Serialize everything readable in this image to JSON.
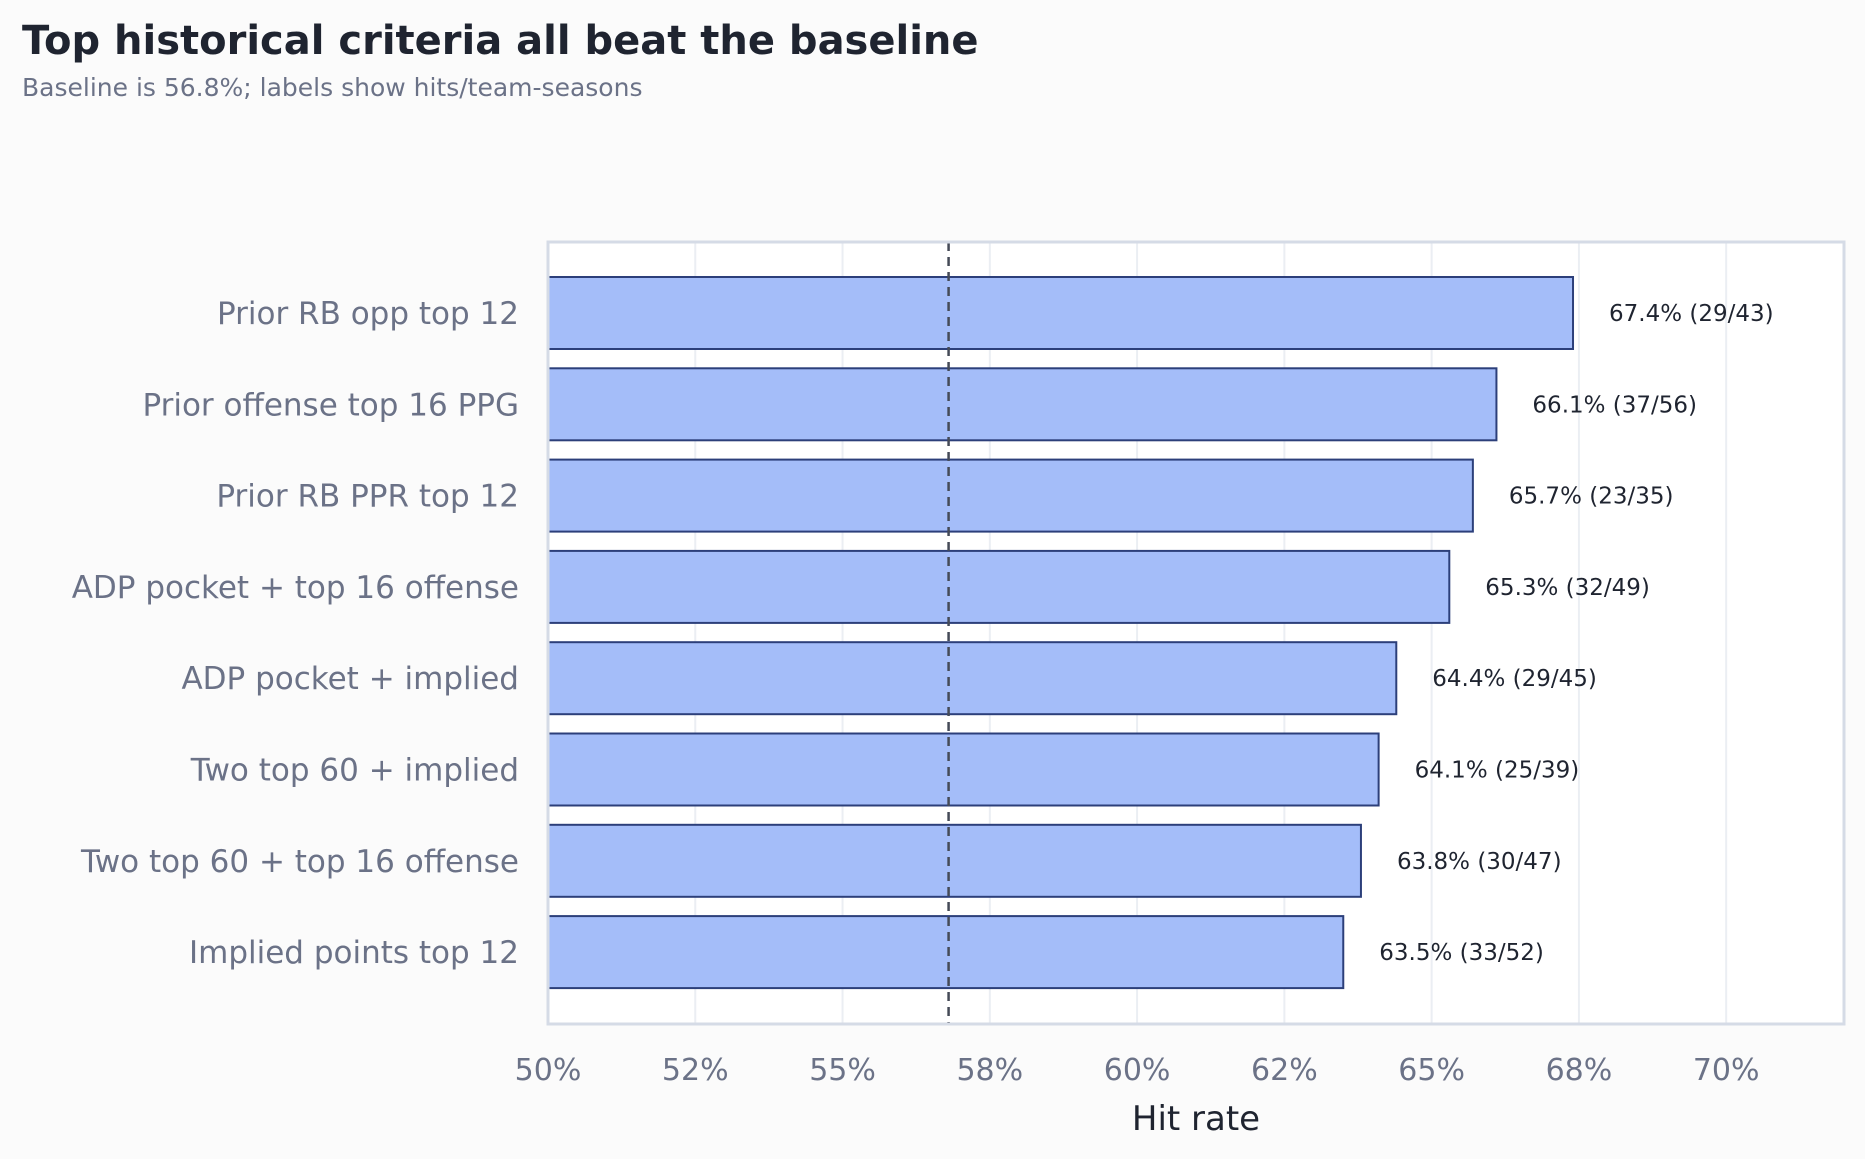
{
  "chart_data": {
    "type": "bar",
    "orientation": "horizontal",
    "title": "Top historical criteria all beat the baseline",
    "subtitle": "Baseline is 56.8%; labels show hits/team-seasons",
    "xlabel": "Hit rate",
    "ylabel": "",
    "xlim": [
      50,
      72
    ],
    "x_ticks": [
      50,
      52.5,
      55,
      57.5,
      60,
      62.5,
      65,
      67.5,
      70
    ],
    "x_tick_labels": [
      "50%",
      "52%",
      "55%",
      "58%",
      "60%",
      "62%",
      "65%",
      "68%",
      "70%"
    ],
    "grid": "vertical",
    "baseline": 56.8,
    "categories": [
      "Prior RB opp top 12",
      "Prior offense top 16 PPG",
      "Prior RB PPR top 12",
      "ADP pocket + top 16 offense",
      "ADP pocket + implied",
      "Two top 60 + implied",
      "Two top 60 + top 16 offense",
      "Implied points top 12"
    ],
    "values": [
      67.4,
      66.1,
      65.7,
      65.3,
      64.4,
      64.1,
      63.8,
      63.5
    ],
    "data_labels": [
      "67.4% (29/43)",
      "66.1% (37/56)",
      "65.7% (23/35)",
      "65.3% (32/49)",
      "64.4% (29/45)",
      "64.1% (25/39)",
      "63.8% (30/47)",
      "63.5% (33/52)"
    ],
    "colors": {
      "bar_fill": "#a4bdf9",
      "bar_stroke": "#2c3f7a",
      "baseline": "#454a57",
      "title": "#1f2430",
      "subtitle": "#6b7287",
      "tick_label": "#6b7287",
      "axis_label": "#1f2430",
      "data_label": "#1f2430",
      "frame": "#d5dbe6",
      "grid": "#ebeef3",
      "background": "#fbfbfb",
      "plot_background": "#ffffff"
    }
  }
}
